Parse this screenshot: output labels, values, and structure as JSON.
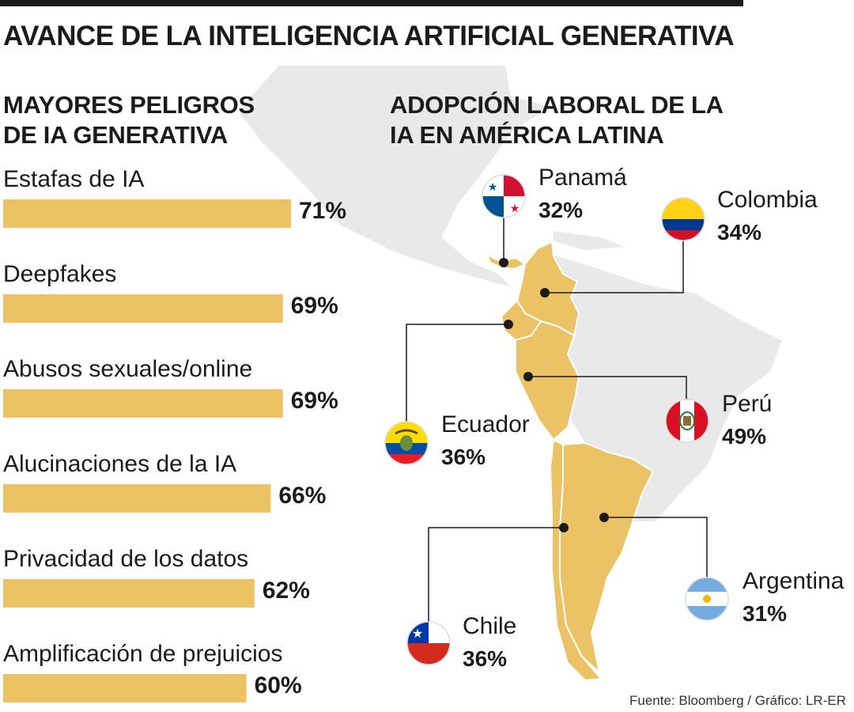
{
  "title": "AVANCE DE LA INTELIGENCIA ARTIFICIAL GENERATIVA",
  "left_section": {
    "title_line1": "MAYORES PELIGROS",
    "title_line2": "DE IA GENERATIVA"
  },
  "right_section": {
    "title_line1": "ADOPCIÓN LABORAL DE LA",
    "title_line2": "IA EN AMÉRICA LATINA"
  },
  "colors": {
    "bar": "#ecc364",
    "map_highlight": "#ecc364",
    "map_base": "#e9e9e9",
    "text": "#1b1b1b"
  },
  "chart_data": [
    {
      "type": "bar",
      "orientation": "horizontal",
      "categories": [
        "Estafas de IA",
        "Deepfakes",
        "Abusos sexuales/online",
        "Alucinaciones de la IA",
        "Privacidad de los datos",
        "Amplificación de prejuicios"
      ],
      "values": [
        71,
        69,
        69,
        66,
        62,
        60
      ],
      "value_labels": [
        "71%",
        "69%",
        "69%",
        "66%",
        "62%",
        "60%"
      ]
    },
    {
      "type": "map",
      "categories": [
        "Panamá",
        "Colombia",
        "Ecuador",
        "Perú",
        "Argentina",
        "Chile"
      ],
      "values": [
        32,
        34,
        36,
        49,
        31,
        36
      ],
      "value_labels": [
        "32%",
        "34%",
        "36%",
        "49%",
        "31%",
        "36%"
      ],
      "flags": [
        "panama-flag",
        "colombia-flag",
        "ecuador-flag",
        "peru-flag",
        "argentina-flag",
        "chile-flag"
      ]
    }
  ],
  "source": "Fuente: Bloomberg / Gráfico: LR-ER"
}
